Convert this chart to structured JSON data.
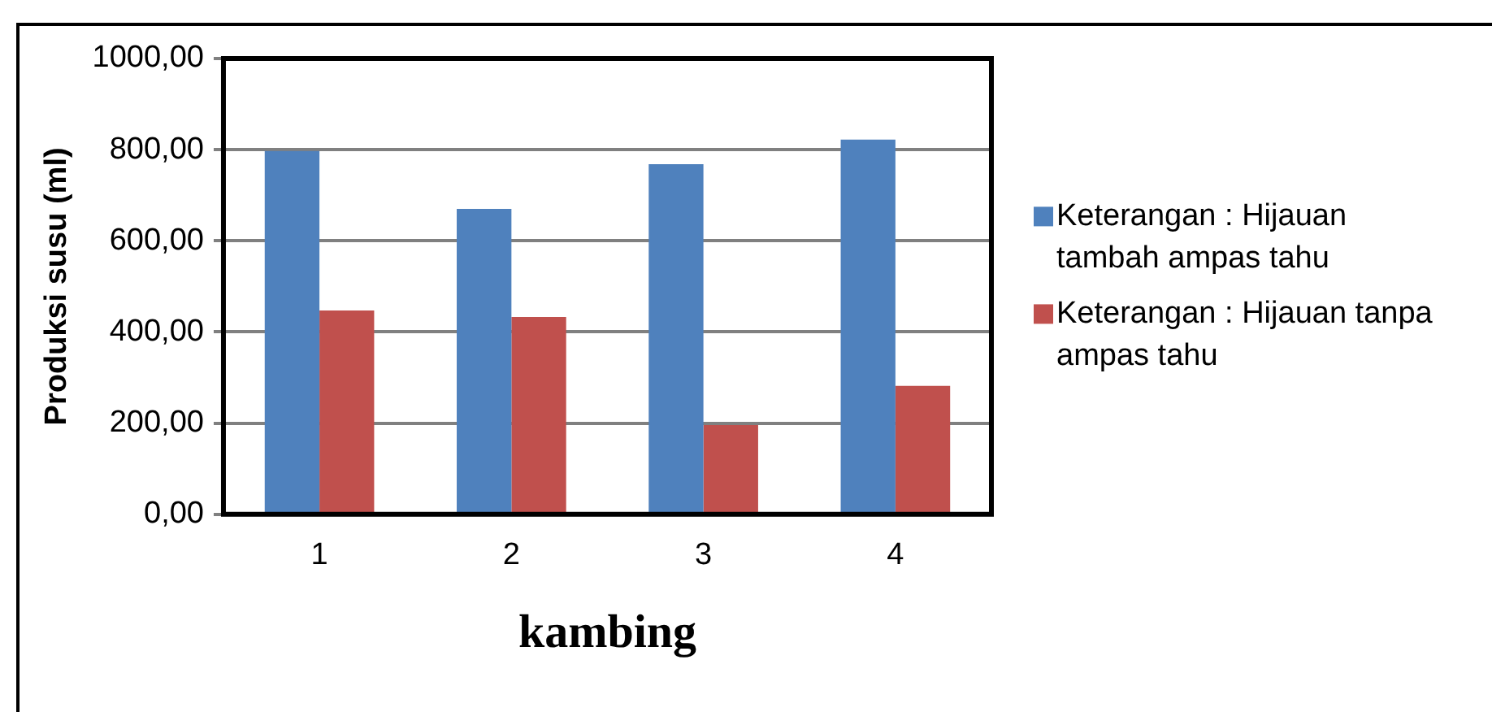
{
  "chart_data": {
    "type": "bar",
    "xlabel": "kambing",
    "ylabel": "Produksi susu (ml)",
    "categories": [
      "1",
      "2",
      "3",
      "4"
    ],
    "series": [
      {
        "name": "Keterangan : Hijauan tambah ampas tahu",
        "color": "#4f81bd",
        "values": [
          797,
          670,
          768,
          822
        ]
      },
      {
        "name": "Keterangan : Hijauan tanpa ampas tahu",
        "color": "#c0504d",
        "values": [
          447,
          433,
          196,
          282
        ]
      }
    ],
    "ylim": [
      0,
      1000
    ],
    "yticks": [
      {
        "value": 0,
        "label": "0,00"
      },
      {
        "value": 200,
        "label": "200,00"
      },
      {
        "value": 400,
        "label": "400,00"
      },
      {
        "value": 600,
        "label": "600,00"
      },
      {
        "value": 800,
        "label": "800,00"
      },
      {
        "value": 1000,
        "label": "1000,00"
      }
    ],
    "grid": "y",
    "legend": "right"
  }
}
